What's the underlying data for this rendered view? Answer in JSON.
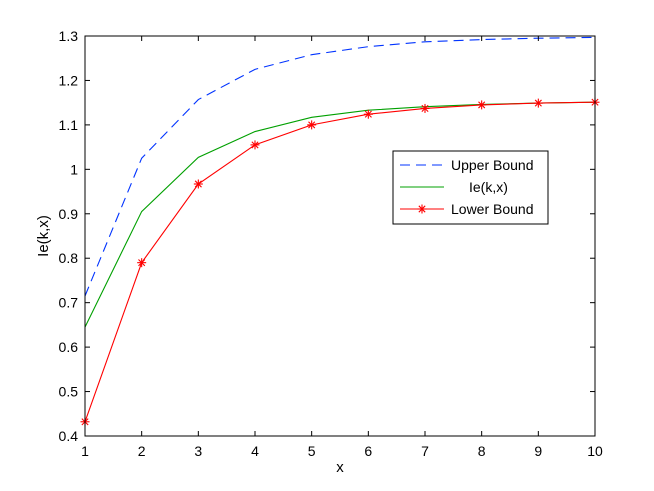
{
  "chart_data": {
    "type": "line",
    "title": "",
    "xlabel": "x",
    "ylabel": "Ie(k,x)",
    "xlim": [
      1,
      10
    ],
    "ylim": [
      0.4,
      1.3
    ],
    "xticks": [
      "1",
      "2",
      "3",
      "4",
      "5",
      "6",
      "7",
      "8",
      "9",
      "10"
    ],
    "yticks": [
      "0.4",
      "0.5",
      "0.6",
      "0.7",
      "0.8",
      "0.9",
      "1",
      "1.1",
      "1.2",
      "1.3"
    ],
    "x": [
      1,
      2,
      3,
      4,
      5,
      6,
      7,
      8,
      9,
      10
    ],
    "grid": false,
    "legend_position": "center-right",
    "series": [
      {
        "name": "Upper Bound",
        "color": "#0033ff",
        "style": "dashed",
        "marker": "none",
        "values": [
          0.715,
          1.025,
          1.157,
          1.225,
          1.258,
          1.276,
          1.287,
          1.292,
          1.295,
          1.297
        ]
      },
      {
        "name": "Ie(k,x)",
        "color": "#00a000",
        "style": "solid",
        "marker": "none",
        "values": [
          0.645,
          0.905,
          1.027,
          1.085,
          1.117,
          1.133,
          1.141,
          1.146,
          1.149,
          1.151
        ]
      },
      {
        "name": "Lower Bound",
        "color": "#ff0000",
        "style": "solid",
        "marker": "asterisk",
        "values": [
          0.432,
          0.79,
          0.967,
          1.055,
          1.1,
          1.124,
          1.137,
          1.145,
          1.149,
          1.151
        ]
      }
    ]
  }
}
